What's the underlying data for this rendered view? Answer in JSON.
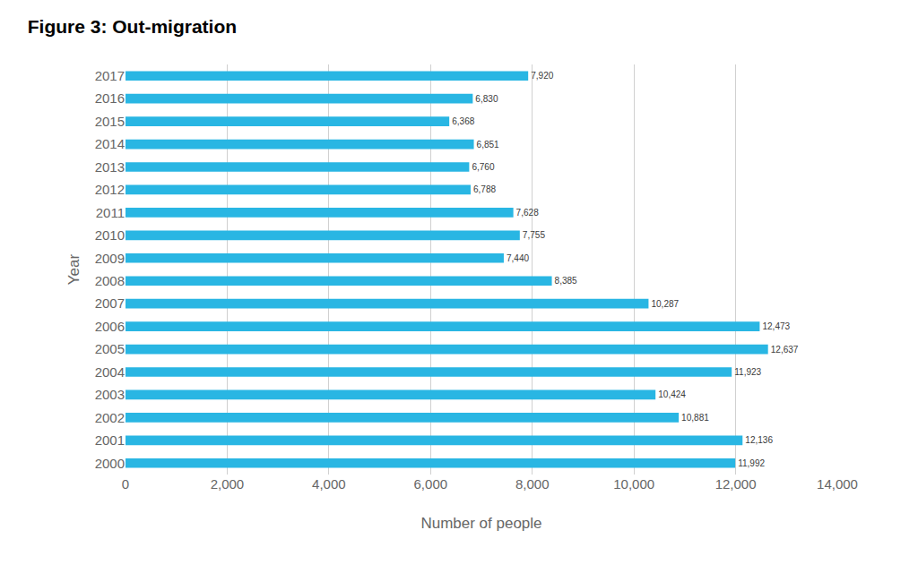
{
  "chart_data": {
    "type": "bar",
    "orientation": "horizontal",
    "title": "Figure 3: Out-migration",
    "x_label": "Number of people",
    "y_label": "Year",
    "categories": [
      "2000",
      "2001",
      "2002",
      "2003",
      "2004",
      "2005",
      "2006",
      "2007",
      "2008",
      "2009",
      "2010",
      "2011",
      "2012",
      "2013",
      "2014",
      "2015",
      "2016",
      "2017"
    ],
    "values": [
      11992,
      12136,
      10881,
      10424,
      11923,
      12637,
      12473,
      10287,
      8385,
      7440,
      7755,
      7628,
      6788,
      6760,
      6851,
      6368,
      6830,
      7920
    ],
    "value_labels": [
      "11,992",
      "12,136",
      "10,881",
      "10,424",
      "11,923",
      "12,637",
      "12,473",
      "10,287",
      "8,385",
      "7,440",
      "7,755",
      "7,628",
      "6,788",
      "6,760",
      "6,851",
      "6,368",
      "6,830",
      "7,920"
    ],
    "color": "#29b6e3",
    "xlim": [
      0,
      14000
    ],
    "xticks": [
      0,
      {
        "value": 2000,
        "label": "2,000"
      },
      {
        "value": 4000,
        "label": "4,000"
      },
      {
        "value": 6000,
        "label": "6,000"
      },
      {
        "value": 8000,
        "label": "8,000"
      },
      {
        "value": 10000,
        "label": "10,000"
      },
      {
        "value": 12000,
        "label": "12,000"
      },
      {
        "value": 14000,
        "label": "14,000"
      }
    ],
    "grid": true,
    "data_labels": true
  }
}
